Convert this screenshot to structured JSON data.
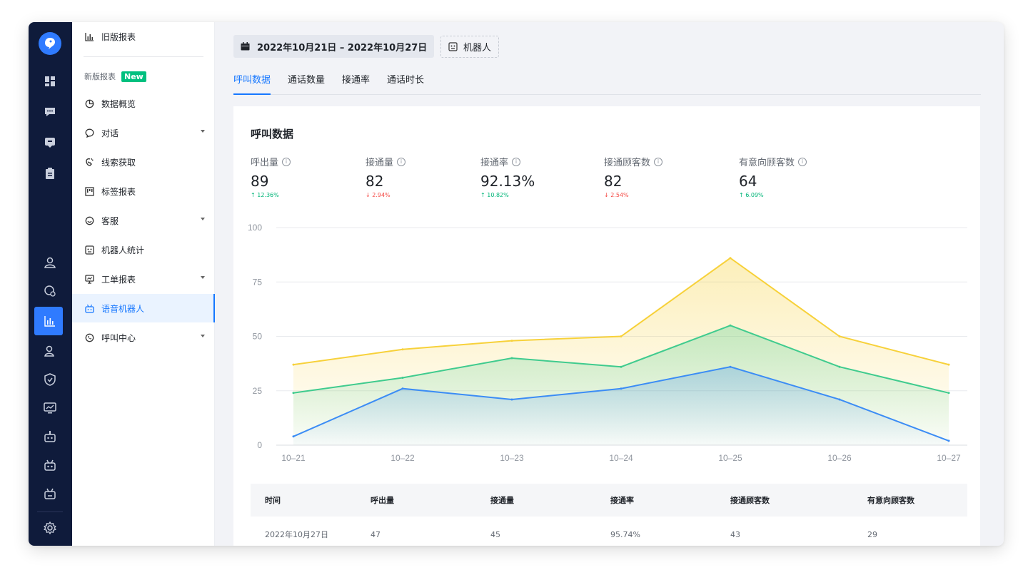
{
  "sidebar": {
    "items": [
      {
        "label": "旧版报表"
      },
      {
        "label": "数据概览"
      },
      {
        "label": "对话"
      },
      {
        "label": "线索获取"
      },
      {
        "label": "标签报表"
      },
      {
        "label": "客服"
      },
      {
        "label": "机器人统计"
      },
      {
        "label": "工单报表"
      },
      {
        "label": "语音机器人"
      },
      {
        "label": "呼叫中心"
      }
    ],
    "group_label": "新版报表",
    "new_badge": "New",
    "active_item": "语音机器人"
  },
  "filters": {
    "date_range": "2022年10月21日 – 2022年10月27日",
    "robot": "机器人"
  },
  "tabs": [
    {
      "label": "呼叫数据",
      "active": true
    },
    {
      "label": "通话数量",
      "active": false
    },
    {
      "label": "接通率",
      "active": false
    },
    {
      "label": "通话时长",
      "active": false
    }
  ],
  "card": {
    "title": "呼叫数据"
  },
  "kpis": [
    {
      "label": "呼出量",
      "value": "89",
      "change": "↑ 12.36%",
      "dir": "up"
    },
    {
      "label": "接通量",
      "value": "82",
      "change": "↓ 2.94%",
      "dir": "down"
    },
    {
      "label": "接通率",
      "value": "92.13%",
      "change": "↑ 10.82%",
      "dir": "up"
    },
    {
      "label": "接通顾客数",
      "value": "82",
      "change": "↓ 2.54%",
      "dir": "down"
    },
    {
      "label": "有意向顾客数",
      "value": "64",
      "change": "↑ 6.09%",
      "dir": "up"
    }
  ],
  "chart_data": {
    "type": "area",
    "x": [
      "10–21",
      "10–22",
      "10–23",
      "10–24",
      "10–25",
      "10–26",
      "10–27"
    ],
    "ylim": [
      0,
      100
    ],
    "yticks": [
      0,
      25,
      50,
      75,
      100
    ],
    "grid": true,
    "series": [
      {
        "color": "#f7d13a",
        "values": [
          37,
          44,
          48,
          50,
          86,
          50,
          37
        ]
      },
      {
        "color": "#3fcb8e",
        "values": [
          24,
          31,
          40,
          36,
          55,
          36,
          24
        ]
      },
      {
        "color": "#3b8cf5",
        "values": [
          4,
          26,
          21,
          26,
          36,
          21,
          2
        ]
      }
    ]
  },
  "table": {
    "headers": [
      "时间",
      "呼出量",
      "接通量",
      "接通率",
      "接通顾客数",
      "有意向顾客数"
    ],
    "rows": [
      [
        "2022年10月27日",
        "47",
        "45",
        "95.74%",
        "43",
        "29"
      ]
    ]
  },
  "rail": {
    "icons": [
      "logo-icon",
      "dashboard-icon",
      "chat-icon",
      "message-icon",
      "clipboard-icon",
      "user-icon",
      "time-user-icon",
      "report-icon",
      "users-icon",
      "shield-icon",
      "monitor-icon",
      "robot-icon",
      "voice-robot-icon",
      "voice-robot-alt-icon",
      "settings-icon"
    ]
  }
}
